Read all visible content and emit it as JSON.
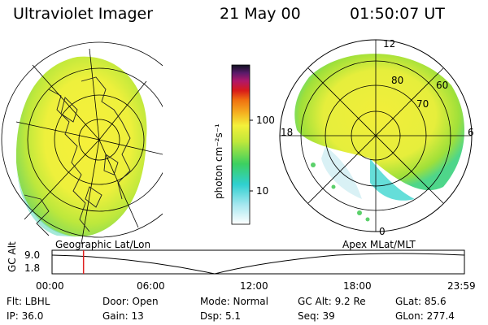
{
  "header": {
    "title": "Ultraviolet Imager",
    "date": "21 May 00",
    "time": "01:50:07 UT"
  },
  "colorbar": {
    "unit_label": "photon cm⁻²s⁻¹",
    "tick_100": "100",
    "tick_10": "10"
  },
  "left_map": {
    "label": "Geographic Lat/Lon"
  },
  "right_map": {
    "label": "Apex MLat/MLT",
    "lat_labels": [
      "80",
      "70",
      "60"
    ],
    "mlt_labels": {
      "top": "12",
      "left": "18",
      "right": "6",
      "bottom": "0"
    }
  },
  "timeline": {
    "ylabel": "GC Alt",
    "y_ticks": [
      "9.0",
      "1.8"
    ],
    "x_ticks": [
      "00:00",
      "06:00",
      "12:00",
      "18:00",
      "23:59"
    ],
    "current_time_fraction": 0.0763
  },
  "info": {
    "filter": "Flt: LBHL",
    "door": "Door: Open",
    "mode": "Mode: Normal",
    "gc_alt": "GC Alt: 9.2 Re",
    "glat": "GLat:  85.6",
    "ip": "IP: 36.0",
    "gain": "Gain: 13",
    "dsp": "Dsp:    5.1",
    "seq": "Seq: 39",
    "glon": "GLon: 277.4"
  },
  "colors": {
    "aurora_yellow": "#f2ee3a",
    "aurora_green": "#9fe03a",
    "aurora_cyan": "#3ed6d0",
    "time_marker": "#e02020"
  }
}
